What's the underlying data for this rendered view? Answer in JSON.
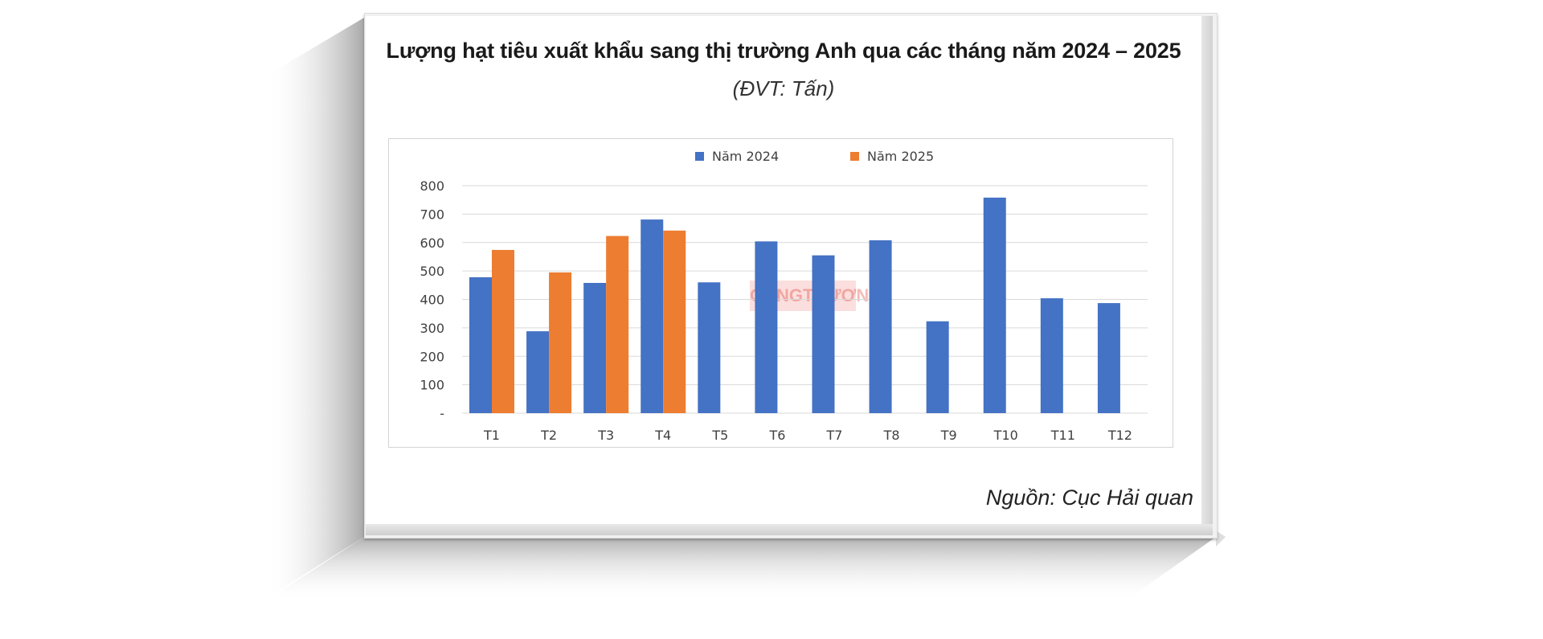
{
  "title": "Lượng hạt tiêu xuất khẩu sang thị trường Anh qua các tháng năm 2024 – 2025",
  "unit": "(ĐVT: Tấn)",
  "source": "Nguồn: Cục Hải quan",
  "watermark": "CÔNGTHƯƠNG",
  "colors": {
    "series_2024": "#4472c4",
    "series_2025": "#ed7d31",
    "grid": "#d9d9d9",
    "axis_text": "#404040"
  },
  "chart_data": {
    "type": "bar",
    "title": "Lượng hạt tiêu xuất khẩu sang thị trường Anh qua các tháng năm 2024 – 2025",
    "categories": [
      "T1",
      "T2",
      "T3",
      "T4",
      "T5",
      "T6",
      "T7",
      "T8",
      "T9",
      "T10",
      "T11",
      "T12"
    ],
    "series": [
      {
        "name": "Năm 2024",
        "color": "#4472c4",
        "values": [
          478,
          288,
          458,
          681,
          460,
          604,
          555,
          608,
          323,
          758,
          404,
          387
        ]
      },
      {
        "name": "Năm 2025",
        "color": "#ed7d31",
        "values": [
          574,
          495,
          623,
          642,
          null,
          null,
          null,
          null,
          null,
          null,
          null,
          null
        ]
      }
    ],
    "ylim": [
      0,
      800
    ],
    "yticks": [
      0,
      100,
      200,
      300,
      400,
      500,
      600,
      700,
      800
    ],
    "ytick_labels": [
      "-",
      "100",
      "200",
      "300",
      "400",
      "500",
      "600",
      "700",
      "800"
    ],
    "grid": true,
    "legend": "top-center"
  }
}
